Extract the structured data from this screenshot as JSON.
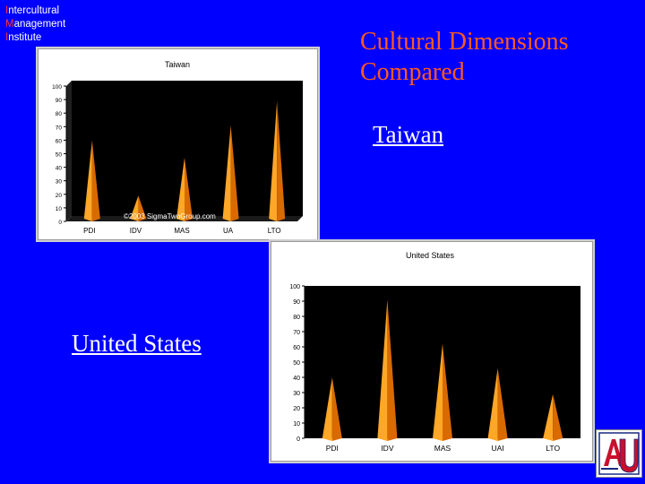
{
  "institute": {
    "line1_initial": "I",
    "line1_rest": "ntercultural",
    "line2_initial": "M",
    "line2_rest": "anagement",
    "line3_initial": "I",
    "line3_rest": "nstitute"
  },
  "slide": {
    "title_line1": "Cultural Dimensions",
    "title_line2": "Compared",
    "label_taiwan": "Taiwan",
    "label_us": "United States"
  },
  "logo": {
    "text": "AU",
    "icon": "american-university-logo-icon"
  },
  "colors": {
    "background": "#0000ff",
    "title": "#ff5a1e",
    "bar": "#ff9900",
    "plot_bg": "#000000"
  },
  "chart_data": [
    {
      "type": "bar",
      "title": "Taiwan",
      "watermark": "©2003 SigmaTwoGroup.com",
      "categories": [
        "PDI",
        "IDV",
        "MAS",
        "UA",
        "LTO"
      ],
      "values": [
        58,
        17,
        45,
        69,
        87
      ],
      "ylim": [
        0,
        100
      ],
      "yticks": [
        "0",
        "10",
        "20",
        "30",
        "40",
        "50",
        "60",
        "70",
        "80",
        "90",
        "100"
      ],
      "grid": false,
      "bar_style": "cone"
    },
    {
      "type": "bar",
      "title": "United States",
      "categories": [
        "PDI",
        "IDV",
        "MAS",
        "UAI",
        "LTO"
      ],
      "values": [
        40,
        91,
        62,
        46,
        29
      ],
      "ylim": [
        0,
        100
      ],
      "yticks": [
        "0",
        "10",
        "20",
        "30",
        "40",
        "50",
        "60",
        "70",
        "80",
        "90",
        "100"
      ],
      "grid": false,
      "bar_style": "cone"
    }
  ]
}
